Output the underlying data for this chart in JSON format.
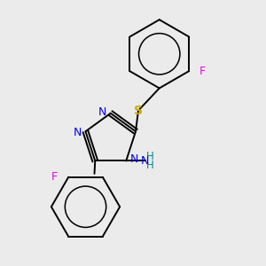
{
  "background_color": "#ebebeb",
  "bond_color": "#000000",
  "N_color": "#0000ee",
  "S_color": "#ccaa00",
  "F_color": "#ee00ee",
  "NH2_color": "#008888",
  "figsize": [
    3.0,
    3.0
  ],
  "dpi": 100,
  "xlim": [
    0,
    10
  ],
  "ylim": [
    0,
    10
  ]
}
